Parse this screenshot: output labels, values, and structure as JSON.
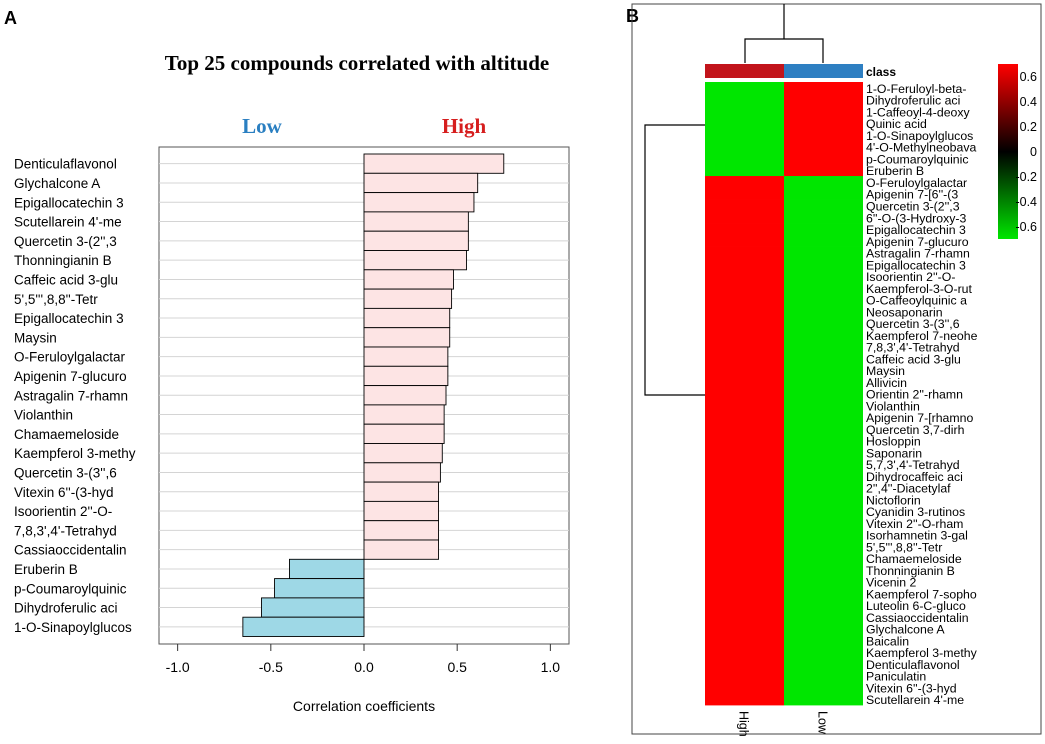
{
  "panel_a": {
    "label": "A",
    "title": "Top 25 compounds correlated with altitude",
    "low_label": "Low",
    "high_label": "High",
    "low_color": "#2a7fc1",
    "high_color": "#d61e1e"
  },
  "panel_b": {
    "label": "B",
    "class_label": "class",
    "colorbar_ticks": [
      "0.6",
      "0.4",
      "0.2",
      "0",
      "-0.2",
      "-0.4",
      "-0.6"
    ],
    "high_color": "#ff0000",
    "low_color": "#00e600",
    "class_high_color": "#c2141b",
    "class_low_color": "#2e7fc2"
  },
  "chart_data": [
    {
      "type": "bar",
      "orientation": "horizontal",
      "title": "Top 25 compounds correlated with altitude",
      "xlabel": "Correlation coefficients",
      "ylabel": "",
      "xlim": [
        -1.1,
        1.1
      ],
      "xticks": [
        -1.0,
        -0.5,
        0.0,
        0.5,
        1.0
      ],
      "xtick_labels": [
        "-1.0",
        "-0.5",
        "0.0",
        "0.5",
        "1.0"
      ],
      "grid": true,
      "positive_color": "#fde4e4",
      "negative_color": "#9ed8e6",
      "categories": [
        "Denticulaflavonol",
        "Glychalcone A",
        "Epigallocatechin 3",
        "Scutellarein 4'-me",
        "Quercetin 3-(2'',3",
        "Thonningianin B",
        "Caffeic acid 3-glu",
        "5',5''',8,8''-Tetr",
        "Epigallocatechin 3",
        "Maysin",
        "O-Feruloylgalactar",
        "Apigenin 7-glucuro",
        "Astragalin 7-rhamn",
        "Violanthin",
        "Chamaemeloside",
        "Kaempferol 3-methy",
        "Quercetin 3-(3'',6",
        "Vitexin 6''-(3-hyd",
        "Isoorientin 2''-O-",
        "7,8,3',4'-Tetrahyd",
        "Cassiaoccidentalin",
        "Eruberin B",
        "p-Coumaroylquinic",
        "Dihydroferulic aci",
        "1-O-Sinapoylglucos"
      ],
      "values": [
        0.75,
        0.61,
        0.59,
        0.56,
        0.56,
        0.55,
        0.48,
        0.47,
        0.46,
        0.46,
        0.45,
        0.45,
        0.44,
        0.43,
        0.43,
        0.42,
        0.41,
        0.4,
        0.4,
        0.4,
        0.4,
        -0.4,
        -0.48,
        -0.55,
        -0.65
      ]
    },
    {
      "type": "heatmap",
      "columns": [
        "High",
        "Low"
      ],
      "column_class_colors": [
        "#c2141b",
        "#2e7fc2"
      ],
      "legend_range": [
        -0.7,
        0.7
      ],
      "rows": [
        "1-O-Feruloyl-beta-",
        "Dihydroferulic aci",
        "1-Caffeoyl-4-deoxy",
        "Quinic acid",
        "1-O-Sinapoylglucos",
        "4'-O-Methylneobava",
        "p-Coumaroylquinic",
        "Eruberin B",
        "O-Feruloylgalactar",
        "Apigenin 7-[6''-(3",
        "Quercetin 3-(2'',3",
        "6''-O-(3-Hydroxy-3",
        "Epigallocatechin 3",
        "Apigenin 7-glucuro",
        "Astragalin 7-rhamn",
        "Epigallocatechin 3",
        "Isoorientin 2''-O-",
        "Kaempferol-3-O-rut",
        "O-Caffeoylquinic a",
        "Neosaponarin",
        "Quercetin 3-(3'',6",
        "Kaempferol 7-neohe",
        "7,8,3',4'-Tetrahyd",
        "Caffeic acid 3-glu",
        "Maysin",
        "Allivicin",
        "Orientin 2''-rhamn",
        "Violanthin",
        "Apigenin 7-[rhamno",
        "Quercetin 3,7-dirh",
        "Hosloppin",
        "Saponarin",
        "5,7,3',4'-Tetrahyd",
        "Dihydrocaffeic aci",
        "2'',4''-Diacetylaf",
        "Nictoflorin",
        "Cyanidin 3-rutinos",
        "Vitexin 2''-O-rham",
        "Isorhamnetin 3-gal",
        "5',5''',8,8''-Tetr",
        "Chamaemeloside",
        "Thonningianin B",
        "Vicenin 2",
        "Kaempferol 7-sopho",
        "Luteolin 6-C-gluco",
        "Cassiaoccidentalin",
        "Glychalcone A",
        "Baicalin",
        "Kaempferol 3-methy",
        "Denticulaflavonol",
        "Paniculatin",
        "Vitexin 6''-(3-hyd",
        "Scutellarein 4'-me"
      ],
      "values_high": [
        -0.7,
        -0.7,
        -0.7,
        -0.7,
        -0.7,
        -0.7,
        -0.7,
        -0.7,
        0.7,
        0.7,
        0.7,
        0.7,
        0.7,
        0.7,
        0.7,
        0.7,
        0.7,
        0.7,
        0.7,
        0.7,
        0.7,
        0.7,
        0.7,
        0.7,
        0.7,
        0.7,
        0.7,
        0.7,
        0.7,
        0.7,
        0.7,
        0.7,
        0.7,
        0.7,
        0.7,
        0.7,
        0.7,
        0.7,
        0.7,
        0.7,
        0.7,
        0.7,
        0.7,
        0.7,
        0.7,
        0.7,
        0.7,
        0.7,
        0.7,
        0.7,
        0.7,
        0.7,
        0.7
      ],
      "values_low": [
        0.7,
        0.7,
        0.7,
        0.7,
        0.7,
        0.7,
        0.7,
        0.7,
        -0.7,
        -0.7,
        -0.7,
        -0.7,
        -0.7,
        -0.7,
        -0.7,
        -0.7,
        -0.7,
        -0.7,
        -0.7,
        -0.7,
        -0.7,
        -0.7,
        -0.7,
        -0.7,
        -0.7,
        -0.7,
        -0.7,
        -0.7,
        -0.7,
        -0.7,
        -0.7,
        -0.7,
        -0.7,
        -0.7,
        -0.7,
        -0.7,
        -0.7,
        -0.7,
        -0.7,
        -0.7,
        -0.7,
        -0.7,
        -0.7,
        -0.7,
        -0.7,
        -0.7,
        -0.7,
        -0.7,
        -0.7,
        -0.7,
        -0.7,
        -0.7,
        -0.7
      ]
    }
  ]
}
